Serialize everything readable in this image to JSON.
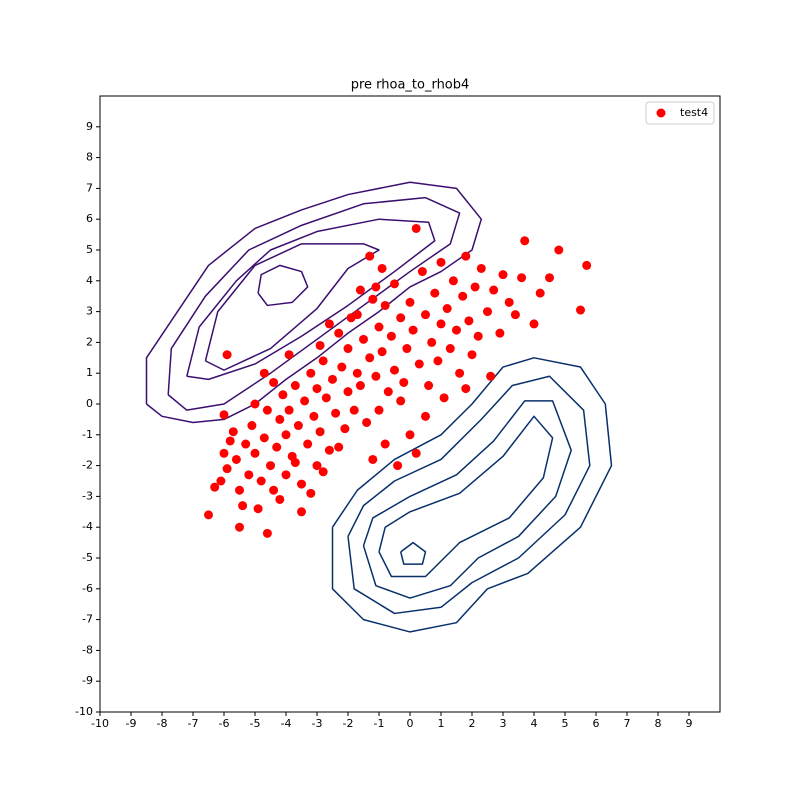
{
  "chart_data": {
    "type": "scatter",
    "title": "pre rhoa_to_rhob4",
    "xlim": [
      -10,
      10
    ],
    "ylim": [
      -10,
      10
    ],
    "xticks": [
      -10,
      -9,
      -8,
      -7,
      -6,
      -5,
      -4,
      -3,
      -2,
      -1,
      0,
      1,
      2,
      3,
      4,
      5,
      6,
      7,
      8,
      9
    ],
    "yticks": [
      -10,
      -9,
      -8,
      -7,
      -6,
      -5,
      -4,
      -3,
      -2,
      -1,
      0,
      1,
      2,
      3,
      4,
      5,
      6,
      7,
      8,
      9
    ],
    "legend": "upper right",
    "series": [
      {
        "name": "test4",
        "color": "#ff0000",
        "x": [
          -6.5,
          -6.3,
          -6.1,
          -6,
          -5.9,
          -5.8,
          -5.7,
          -5.6,
          -5.5,
          -5.5,
          -5.4,
          -5.3,
          -5.2,
          -5.1,
          -5,
          -4.9,
          -4.8,
          -4.7,
          -4.6,
          -4.6,
          -4.5,
          -4.4,
          -4.3,
          -4.2,
          -4.1,
          -4,
          -4,
          -3.9,
          -3.8,
          -3.7,
          -3.6,
          -3.5,
          -3.5,
          -3.4,
          -3.3,
          -3.2,
          -3.1,
          -3,
          -3,
          -2.9,
          -2.8,
          -2.7,
          -2.6,
          -2.5,
          -2.4,
          -2.3,
          -2.2,
          -2.1,
          -2,
          -2,
          -1.9,
          -1.8,
          -1.7,
          -1.6,
          -1.5,
          -1.4,
          -1.3,
          -1.2,
          -1.2,
          -1.1,
          -1,
          -1,
          -0.9,
          -0.8,
          -0.7,
          -0.6,
          -0.5,
          -0.5,
          -0.4,
          -0.3,
          -0.2,
          -0.1,
          0,
          0,
          0.1,
          0.2,
          0.2,
          0.3,
          0.4,
          0.5,
          0.6,
          0.7,
          0.8,
          0.9,
          1,
          1,
          1.1,
          1.2,
          1.3,
          1.4,
          1.5,
          1.6,
          1.7,
          1.8,
          1.9,
          2,
          2.1,
          2.2,
          2.3,
          2.5,
          2.6,
          2.7,
          2.9,
          3,
          3.2,
          3.4,
          3.6,
          3.7,
          4,
          4.2,
          4.5,
          4.8,
          5.5,
          5.7,
          -5.9,
          -6,
          -4.7,
          -5,
          -3.9,
          -2.6,
          -1.6,
          -1.3,
          -0.8,
          0.5,
          -3.2,
          -4.2,
          -2.3,
          -1.7,
          -0.3,
          1.8,
          -3.7,
          -2.9,
          -4.4,
          -1.1,
          -0.9,
          -2.8
        ],
        "y": [
          -3.6,
          -2.7,
          -2.5,
          -1.6,
          -2.1,
          -1.2,
          -0.9,
          -1.8,
          -2.8,
          -4,
          -3.3,
          -1.3,
          -2.3,
          -0.7,
          -1.6,
          -3.4,
          -2.5,
          -1.1,
          -4.2,
          -0.2,
          -2,
          -2.8,
          -1.4,
          -0.5,
          0.3,
          -2.3,
          -1,
          -0.2,
          -1.7,
          0.6,
          -0.7,
          -3.5,
          -2.6,
          0.1,
          -1.3,
          1,
          -0.4,
          -2,
          0.5,
          -0.9,
          1.4,
          0.2,
          -1.5,
          0.8,
          -0.3,
          2.3,
          1.2,
          -0.8,
          0.4,
          1.8,
          2.8,
          -0.2,
          1,
          0.6,
          2.1,
          -0.6,
          1.5,
          -1.8,
          3.4,
          0.9,
          2.5,
          -0.2,
          1.7,
          3.2,
          0.4,
          2.2,
          1.1,
          3.9,
          -2,
          2.8,
          0.7,
          1.8,
          3.3,
          -1,
          2.4,
          5.7,
          -1.6,
          1.3,
          4.3,
          2.9,
          0.6,
          2,
          3.6,
          1.4,
          4.6,
          2.6,
          0.2,
          3.1,
          1.8,
          4,
          2.4,
          1,
          3.5,
          4.8,
          2.7,
          1.6,
          3.8,
          2.2,
          4.4,
          3,
          0.9,
          3.7,
          2.3,
          4.2,
          3.3,
          2.9,
          4.1,
          5.3,
          2.6,
          3.6,
          4.1,
          5,
          3.05,
          4.5,
          1.6,
          -0.35,
          1,
          0,
          1.6,
          2.6,
          3.7,
          4.8,
          -1.3,
          -0.4,
          -2.9,
          -3.1,
          -1.4,
          2.9,
          0.1,
          0.5,
          -1.9,
          1.9,
          0.7,
          3.8,
          4.4,
          -2.2
        ]
      }
    ],
    "contours": [
      {
        "color": "#3b0f6f",
        "x": [
          -8.5,
          -8.5,
          -7.5,
          -6.5,
          -5,
          -3.5,
          -2,
          0,
          1.5,
          2.3,
          2,
          1,
          0,
          -1,
          -2,
          -3,
          -4,
          -5,
          -6,
          -7,
          -8,
          -8.5
        ],
        "y": [
          0,
          1.5,
          3,
          4.5,
          5.7,
          6.3,
          6.8,
          7.2,
          7,
          6,
          5,
          4.3,
          3.8,
          3,
          2.3,
          1.5,
          0.8,
          0,
          -0.5,
          -0.6,
          -0.4,
          0
        ]
      },
      {
        "color": "#3b0f6f",
        "x": [
          -7.8,
          -7.7,
          -6.6,
          -5.2,
          -3.5,
          -1.5,
          0.5,
          1.6,
          1.3,
          0,
          -1.5,
          -3,
          -4.5,
          -6,
          -7.2,
          -7.8
        ],
        "y": [
          0.3,
          1.8,
          3.5,
          5,
          5.8,
          6.5,
          6.7,
          6.2,
          5.2,
          4.3,
          3.2,
          2.1,
          1,
          0,
          -0.2,
          0.3
        ]
      },
      {
        "color": "#3b0f6f",
        "x": [
          -7.2,
          -6.8,
          -5.6,
          -4.5,
          -3,
          -1,
          0.6,
          0.8,
          -0.5,
          -2,
          -3.5,
          -5,
          -6.5,
          -7.2
        ],
        "y": [
          0.9,
          2.5,
          4,
          5,
          5.6,
          6,
          5.9,
          5.3,
          4.3,
          3.2,
          2.2,
          1.3,
          0.8,
          0.9
        ]
      },
      {
        "color": "#3b0f6f",
        "x": [
          -6.6,
          -6.2,
          -5,
          -3.5,
          -1.5,
          -1,
          -2,
          -3,
          -4.5,
          -6,
          -6.6
        ],
        "y": [
          1.4,
          3,
          4.5,
          5.2,
          5.2,
          5,
          4.4,
          3.1,
          1.8,
          1.1,
          1.4
        ]
      },
      {
        "color": "#3b0f6f",
        "x": [
          -4.9,
          -4.8,
          -4.2,
          -3.5,
          -3.3,
          -3.8,
          -4.6,
          -4.9
        ],
        "y": [
          3.6,
          4.2,
          4.5,
          4.3,
          3.8,
          3.3,
          3.2,
          3.6
        ]
      },
      {
        "color": "#08306b",
        "x": [
          -2.5,
          -2.5,
          -1.5,
          0,
          1.5,
          2.5,
          3.8,
          5.5,
          6.5,
          6.3,
          5.5,
          4,
          3,
          2,
          1,
          -0.5,
          -1.7,
          -2.5
        ],
        "y": [
          -4,
          -6,
          -7,
          -7.4,
          -7.1,
          -6,
          -5.5,
          -4,
          -2,
          0,
          1.2,
          1.5,
          1.2,
          0,
          -1,
          -1.8,
          -2.8,
          -4
        ]
      },
      {
        "color": "#08306b",
        "x": [
          -2,
          -1.8,
          -0.5,
          1,
          2,
          3.5,
          5,
          5.8,
          5.6,
          4.5,
          3.3,
          2.3,
          1,
          -0.5,
          -1.5,
          -2
        ],
        "y": [
          -4.3,
          -6,
          -6.8,
          -6.6,
          -5.8,
          -5,
          -3.6,
          -2,
          -0.2,
          0.9,
          0.6,
          -0.5,
          -1.8,
          -2.5,
          -3.3,
          -4.3
        ]
      },
      {
        "color": "#08306b",
        "x": [
          -1.5,
          -1.1,
          0,
          1.3,
          2.2,
          3.5,
          4.7,
          5.2,
          4.6,
          3.7,
          2.7,
          1.5,
          0,
          -1.2,
          -1.5
        ],
        "y": [
          -4.6,
          -5.9,
          -6.3,
          -5.9,
          -5,
          -4.3,
          -3,
          -1.5,
          0.1,
          0.1,
          -1.2,
          -2.3,
          -3,
          -3.7,
          -4.6
        ]
      },
      {
        "color": "#08306b",
        "x": [
          -1,
          -0.6,
          0.5,
          1.6,
          3.2,
          4.3,
          4.6,
          4,
          3,
          1.6,
          0,
          -0.8,
          -1
        ],
        "y": [
          -4.8,
          -5.6,
          -5.6,
          -4.5,
          -3.7,
          -2.4,
          -1.1,
          -0.4,
          -1.7,
          -2.9,
          -3.5,
          -4,
          -4.8
        ]
      },
      {
        "color": "#08306b",
        "x": [
          -0.3,
          -0.2,
          0.4,
          0.5,
          0.1,
          -0.3
        ],
        "y": [
          -4.8,
          -5.2,
          -5.2,
          -4.8,
          -4.5,
          -4.8
        ]
      }
    ]
  }
}
